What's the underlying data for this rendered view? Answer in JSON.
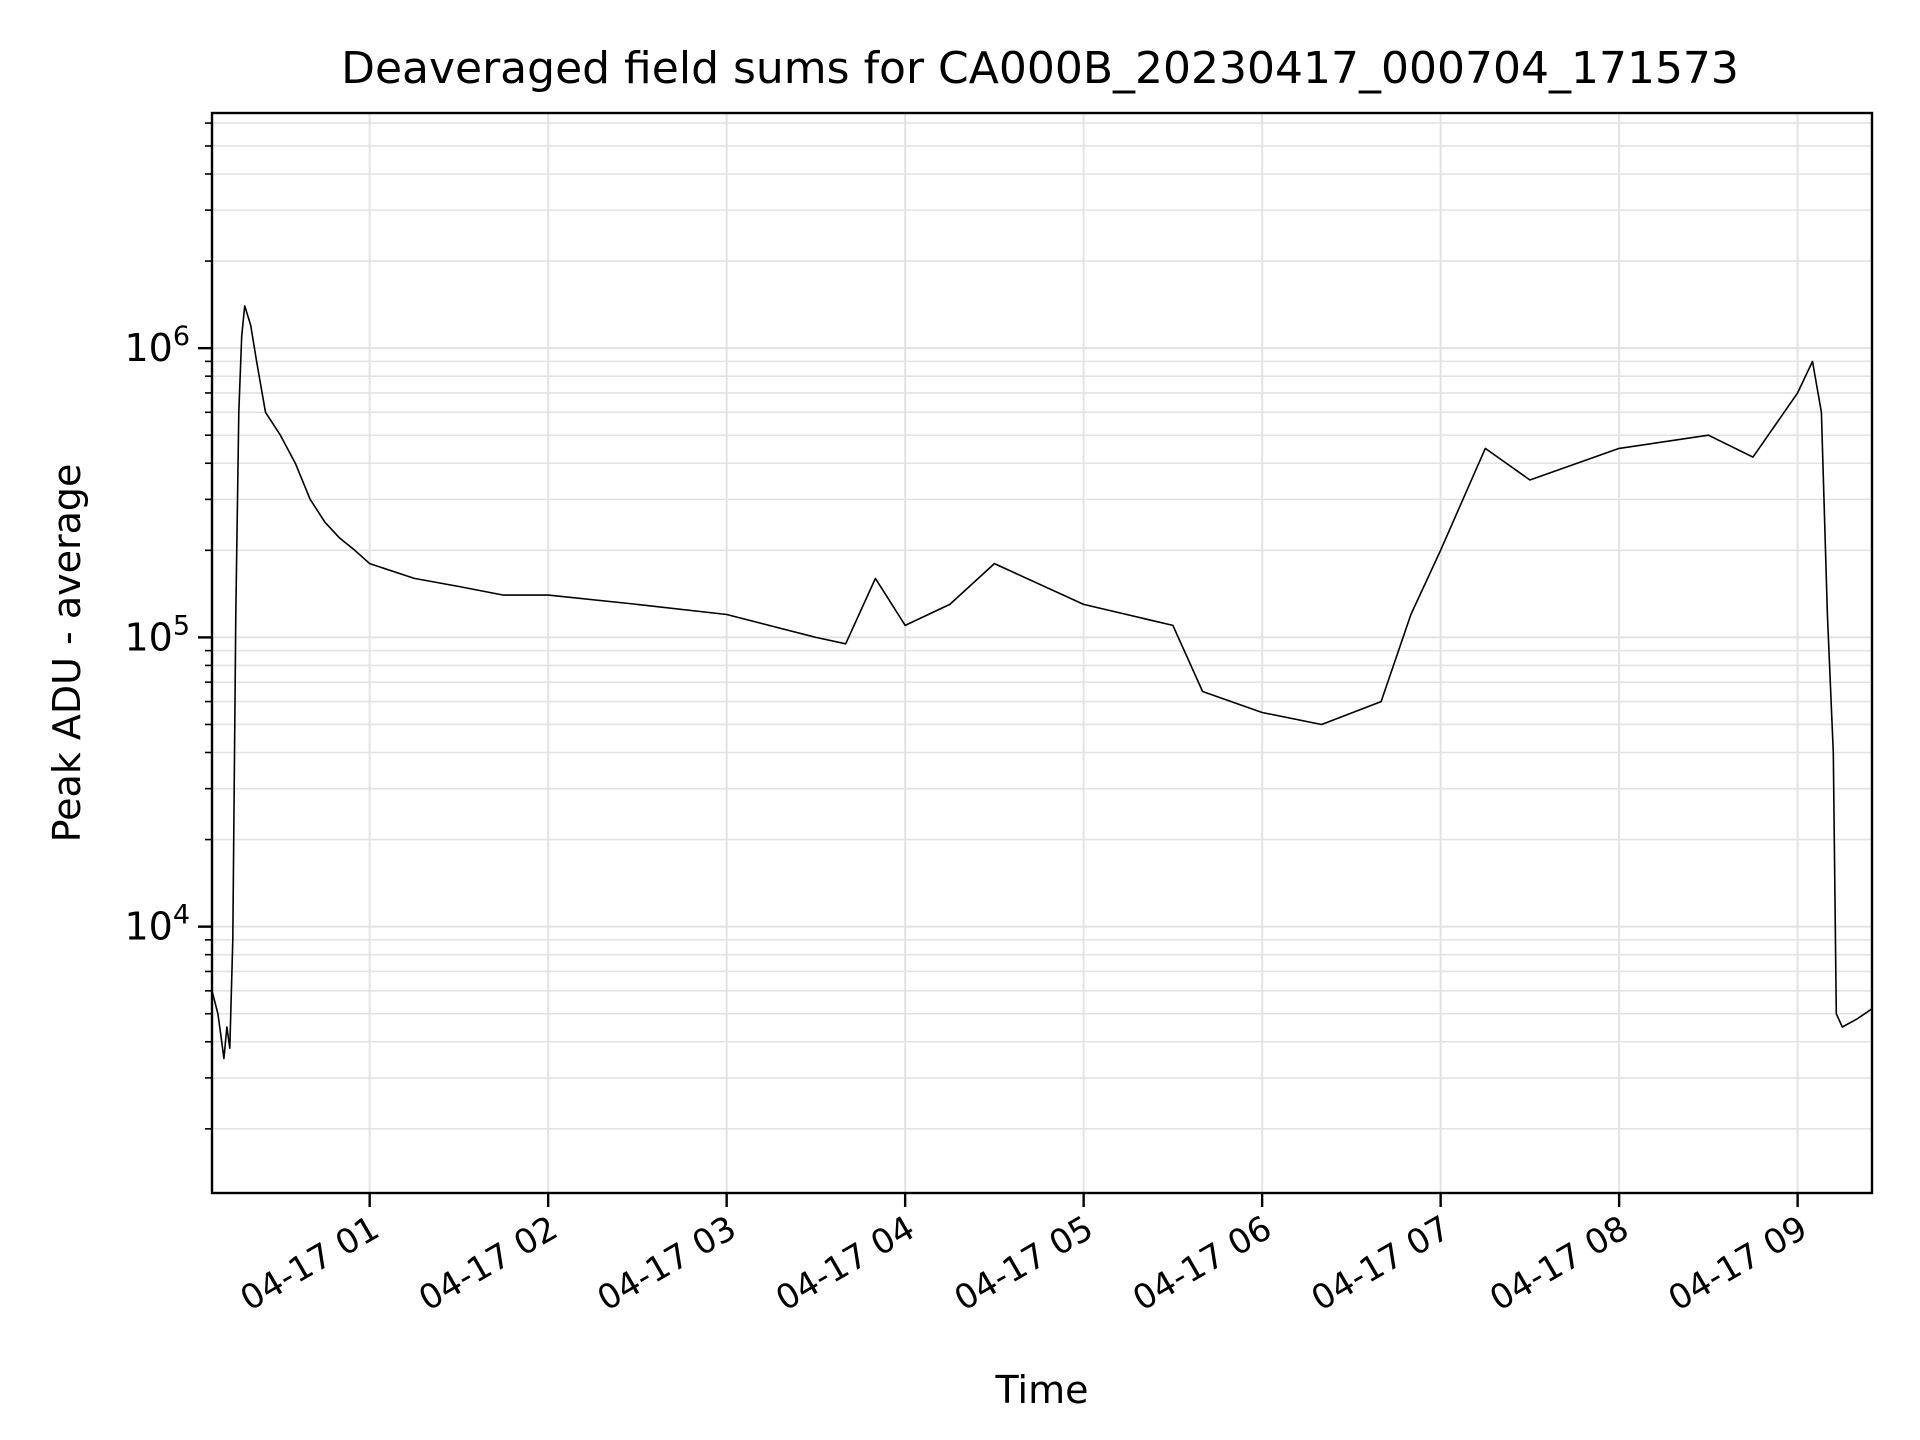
{
  "chart_data": {
    "type": "line",
    "title": "Deaveraged field sums for CA000B_20230417_000704_171573",
    "xlabel": "Time",
    "ylabel": "Peak ADU - average",
    "y_scale": "log",
    "ylim": [
      1200,
      6500000
    ],
    "xlim": [
      "2023-04-17 00:07",
      "2023-04-17 09:25"
    ],
    "grid": true,
    "legend": "none",
    "line_color": "#000000",
    "grid_color": "#e3e3e3",
    "x_ticks": [
      {
        "value": "2023-04-17 01:00",
        "label": "04-17 01"
      },
      {
        "value": "2023-04-17 02:00",
        "label": "04-17 02"
      },
      {
        "value": "2023-04-17 03:00",
        "label": "04-17 03"
      },
      {
        "value": "2023-04-17 04:00",
        "label": "04-17 04"
      },
      {
        "value": "2023-04-17 05:00",
        "label": "04-17 05"
      },
      {
        "value": "2023-04-17 06:00",
        "label": "04-17 06"
      },
      {
        "value": "2023-04-17 07:00",
        "label": "04-17 07"
      },
      {
        "value": "2023-04-17 08:00",
        "label": "04-17 08"
      },
      {
        "value": "2023-04-17 09:00",
        "label": "04-17 09"
      }
    ],
    "y_ticks": [
      {
        "value": 10000,
        "base": "10",
        "exp": "4"
      },
      {
        "value": 100000,
        "base": "10",
        "exp": "5"
      },
      {
        "value": 1000000,
        "base": "10",
        "exp": "6"
      }
    ],
    "series": [
      {
        "x": [
          "2023-04-17 00:07",
          "2023-04-17 00:09",
          "2023-04-17 00:10",
          "2023-04-17 00:11",
          "2023-04-17 00:12",
          "2023-04-17 00:13",
          "2023-04-17 00:14",
          "2023-04-17 00:15",
          "2023-04-17 00:16",
          "2023-04-17 00:17",
          "2023-04-17 00:18",
          "2023-04-17 00:20",
          "2023-04-17 00:22",
          "2023-04-17 00:25",
          "2023-04-17 00:30",
          "2023-04-17 00:35",
          "2023-04-17 00:40",
          "2023-04-17 00:45",
          "2023-04-17 00:50",
          "2023-04-17 00:55",
          "2023-04-17 01:00",
          "2023-04-17 01:15",
          "2023-04-17 01:30",
          "2023-04-17 01:45",
          "2023-04-17 02:00",
          "2023-04-17 02:30",
          "2023-04-17 03:00",
          "2023-04-17 03:30",
          "2023-04-17 03:40",
          "2023-04-17 03:50",
          "2023-04-17 04:00",
          "2023-04-17 04:15",
          "2023-04-17 04:30",
          "2023-04-17 05:00",
          "2023-04-17 05:30",
          "2023-04-17 05:40",
          "2023-04-17 06:00",
          "2023-04-17 06:20",
          "2023-04-17 06:40",
          "2023-04-17 06:50",
          "2023-04-17 07:00",
          "2023-04-17 07:15",
          "2023-04-17 07:30",
          "2023-04-17 08:00",
          "2023-04-17 08:30",
          "2023-04-17 08:45",
          "2023-04-17 09:00",
          "2023-04-17 09:05",
          "2023-04-17 09:08",
          "2023-04-17 09:10",
          "2023-04-17 09:12",
          "2023-04-17 09:13",
          "2023-04-17 09:15",
          "2023-04-17 09:20",
          "2023-04-17 09:25"
        ],
        "y": [
          6000,
          5000,
          4200,
          3500,
          4500,
          3800,
          9000,
          120000,
          600000,
          1100000,
          1400000,
          1200000,
          900000,
          600000,
          500000,
          400000,
          300000,
          250000,
          220000,
          200000,
          180000,
          160000,
          150000,
          140000,
          140000,
          130000,
          120000,
          100000,
          95000,
          160000,
          110000,
          130000,
          180000,
          130000,
          110000,
          65000,
          55000,
          50000,
          60000,
          120000,
          200000,
          450000,
          350000,
          450000,
          500000,
          420000,
          700000,
          900000,
          600000,
          120000,
          40000,
          5000,
          4500,
          4800,
          5200
        ]
      }
    ]
  }
}
